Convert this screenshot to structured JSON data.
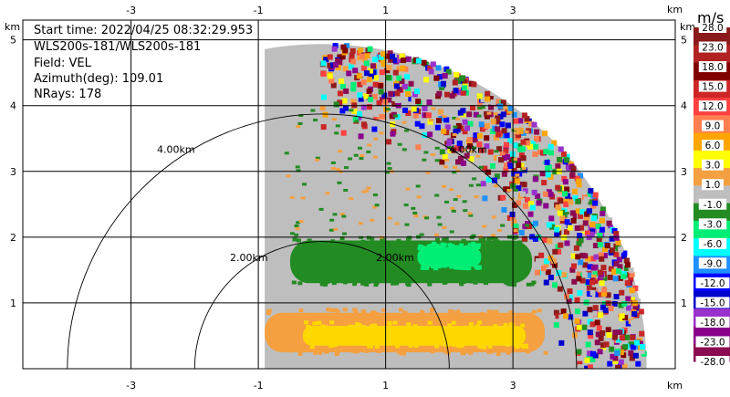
{
  "info": {
    "start_time": "Start time: 2022/04/25 08:32:29.953",
    "instrument": "WLS200s-181/WLS200s-181",
    "field": "Field: VEL",
    "azimuth": "Azimuth(deg): 109.01",
    "nrays": "NRays: 178"
  },
  "chart_data": {
    "type": "heatmap",
    "x_unit": "km",
    "y_unit": "km",
    "xlim": [
      -4.7,
      5.55
    ],
    "ylim": [
      0,
      5.3
    ],
    "x_ticks": [
      "-3",
      "-1",
      "1",
      "3"
    ],
    "x_tick_values": [
      -3,
      -1,
      1,
      3
    ],
    "y_ticks": [
      "1",
      "2",
      "3",
      "4",
      "5"
    ],
    "y_tick_values": [
      1,
      2,
      3,
      4,
      5
    ],
    "grid": true,
    "range_rings": [
      {
        "radius_km": 2,
        "label": "2.00km"
      },
      {
        "radius_km": 4,
        "label": "4.00km"
      }
    ],
    "sector": {
      "azimuth_deg": [
        0,
        90
      ],
      "max_range_km": 5.1,
      "x_start_km": -0.9
    },
    "colorbar": {
      "unit": "m/s",
      "labels": [
        "28.0",
        "23.0",
        "18.0",
        "15.0",
        "12.0",
        "9.0",
        "6.0",
        "3.0",
        "1.0",
        "-1.0",
        "-3.0",
        "-6.0",
        "-9.0",
        "-12.0",
        "-15.0",
        "-18.0",
        "-23.0",
        "-28.0"
      ],
      "colors": [
        "#8b1a1a",
        "#b22222",
        "#800000",
        "#cd2626",
        "#ff4040",
        "#ff7f50",
        "#ffa500",
        "#ffff00",
        "#f4a040",
        "#bebebe",
        "#228b22",
        "#00ee76",
        "#00ffff",
        "#1e90ff",
        "#0000ff",
        "#0000cd",
        "#9932cc",
        "#8b008b",
        "#8b0a50"
      ]
    },
    "velocity_bands": [
      {
        "name": "",
        "y_range_km": [
          0.25,
          0.85
        ],
        "x_range_km": [
          -0.9,
          3.5
        ],
        "value_ms": 5,
        "color": "#f4a040"
      },
      {
        "name": "",
        "y_range_km": [
          0.35,
          0.65
        ],
        "x_range_km": [
          -0.3,
          3.2
        ],
        "value_ms": 7,
        "color": "#ffd700"
      },
      {
        "name": "",
        "y_range_km": [
          1.3,
          1.95
        ],
        "x_range_km": [
          -0.5,
          3.3
        ],
        "value_ms": -2,
        "color": "#228b22"
      },
      {
        "name": "",
        "y_range_km": [
          1.55,
          1.85
        ],
        "x_range_km": [
          1.5,
          2.5
        ],
        "value_ms": -6,
        "color": "#00ee76"
      }
    ]
  }
}
